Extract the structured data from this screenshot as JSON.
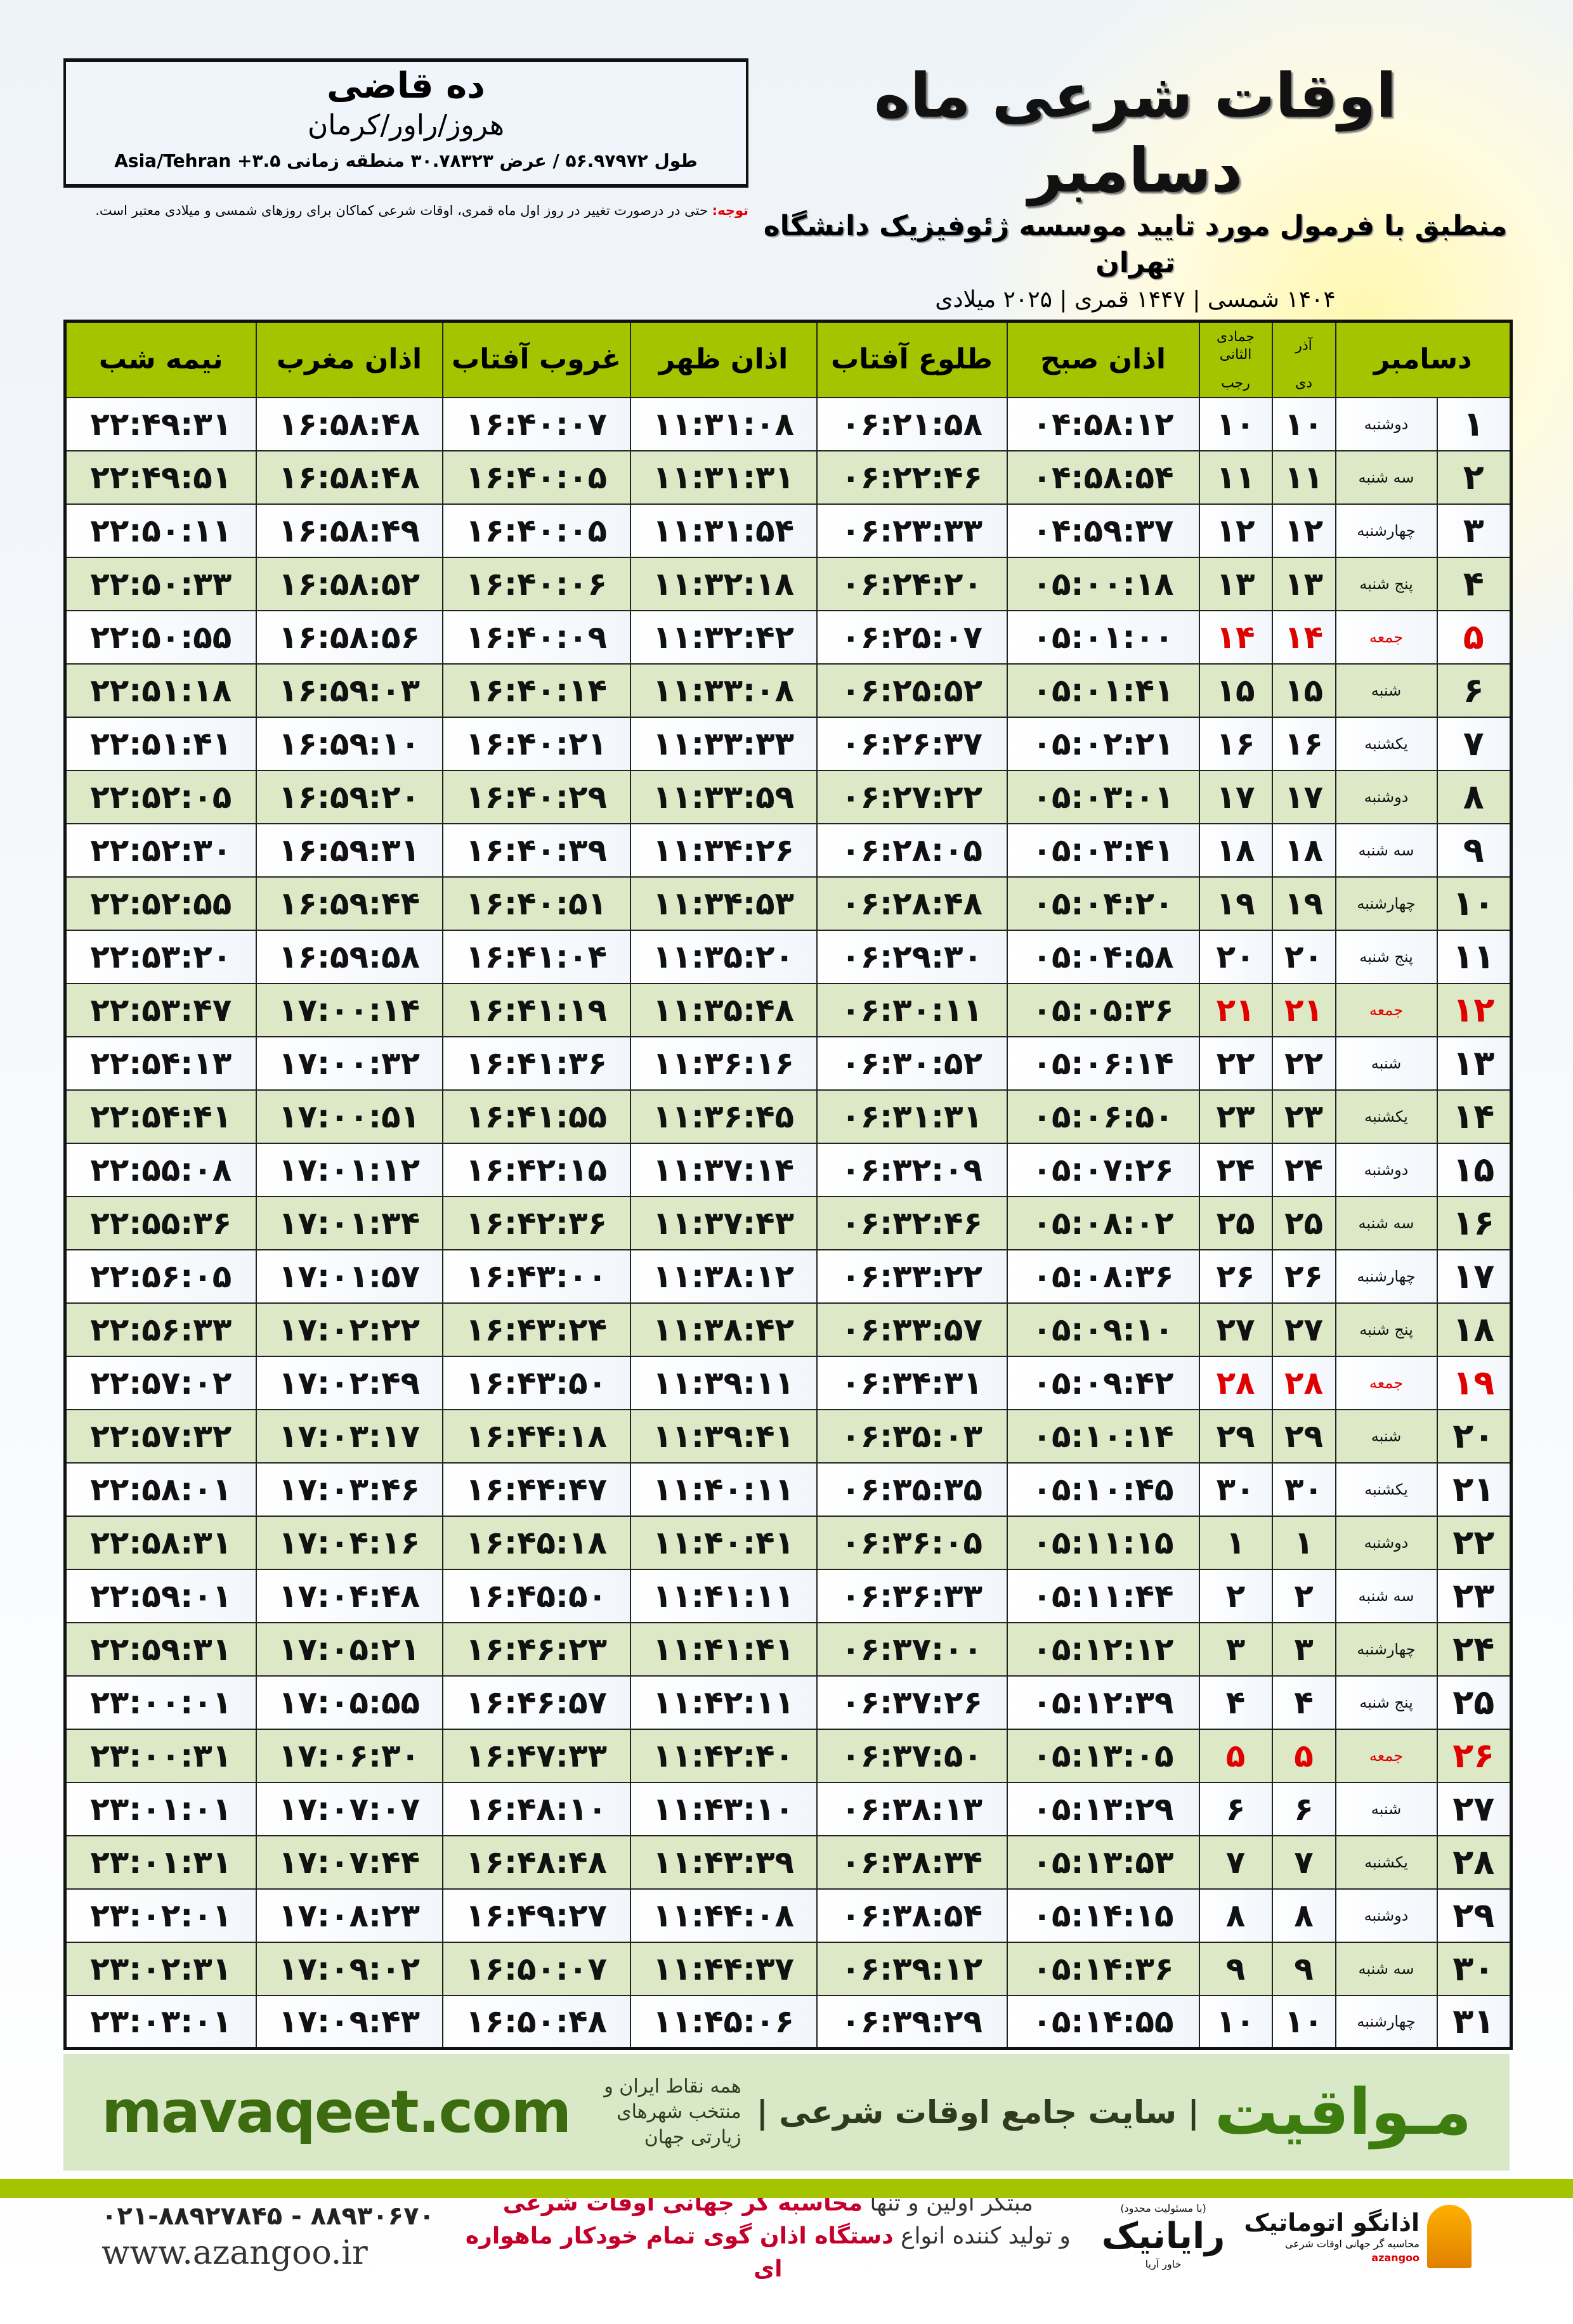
{
  "header": {
    "title": "اوقات شرعی ماه دسامبر",
    "subtitle": "منطبق با فرمول مورد تایید موسسه ژئوفیزیک دانشگاه تهران",
    "dates": "۱۴۰۴ شمسی | ۱۴۴۷ قمری | ۲۰۲۵ میلادی",
    "note_label": "توجه:",
    "note_text": " حتی در درصورت تغییر در روز اول ماه قمری، اوقات شرعی کماکان برای روزهای شمسی و میلادی معتبر است."
  },
  "location": {
    "city": "ده قاضی",
    "region": "هروز/راور/کرمان",
    "coords": "طول ۵۶.۹۷۹۷۲ / عرض ۳۰.۷۸۳۲۳ منطقه زمانی ۳.۵+ Asia/Tehran"
  },
  "table": {
    "columns": {
      "month": "دسامبر",
      "persian_month": "آذر",
      "hijri_month": "جمادی الثانی",
      "dey": "دی",
      "rajab": "رجب",
      "fajr": "اذان صبح",
      "sunrise": "طلوع آفتاب",
      "dhuhr": "اذان ظهر",
      "sunset": "غروب آفتاب",
      "maghrib": "اذان مغرب",
      "midnight": "نیمه شب"
    },
    "holiday_color": "#e00000",
    "header_color": "#a5c400",
    "rows": [
      {
        "day": "۱",
        "weekday": "دوشنبه",
        "dey": "۱۰",
        "rajab": "۱۰",
        "fajr": "۰۴:۵۸:۱۲",
        "sunrise": "۰۶:۲۱:۵۸",
        "dhuhr": "۱۱:۳۱:۰۸",
        "sunset": "۱۶:۴۰:۰۷",
        "maghrib": "۱۶:۵۸:۴۸",
        "midnight": "۲۲:۴۹:۳۱"
      },
      {
        "day": "۲",
        "weekday": "سه شنبه",
        "dey": "۱۱",
        "rajab": "۱۱",
        "fajr": "۰۴:۵۸:۵۴",
        "sunrise": "۰۶:۲۲:۴۶",
        "dhuhr": "۱۱:۳۱:۳۱",
        "sunset": "۱۶:۴۰:۰۵",
        "maghrib": "۱۶:۵۸:۴۸",
        "midnight": "۲۲:۴۹:۵۱"
      },
      {
        "day": "۳",
        "weekday": "چهارشنبه",
        "dey": "۱۲",
        "rajab": "۱۲",
        "fajr": "۰۴:۵۹:۳۷",
        "sunrise": "۰۶:۲۳:۳۳",
        "dhuhr": "۱۱:۳۱:۵۴",
        "sunset": "۱۶:۴۰:۰۵",
        "maghrib": "۱۶:۵۸:۴۹",
        "midnight": "۲۲:۵۰:۱۱"
      },
      {
        "day": "۴",
        "weekday": "پنج شنبه",
        "dey": "۱۳",
        "rajab": "۱۳",
        "fajr": "۰۵:۰۰:۱۸",
        "sunrise": "۰۶:۲۴:۲۰",
        "dhuhr": "۱۱:۳۲:۱۸",
        "sunset": "۱۶:۴۰:۰۶",
        "maghrib": "۱۶:۵۸:۵۲",
        "midnight": "۲۲:۵۰:۳۳"
      },
      {
        "day": "۵",
        "weekday": "جمعه",
        "holiday": true,
        "dey": "۱۴",
        "rajab": "۱۴",
        "fajr": "۰۵:۰۱:۰۰",
        "sunrise": "۰۶:۲۵:۰۷",
        "dhuhr": "۱۱:۳۲:۴۲",
        "sunset": "۱۶:۴۰:۰۹",
        "maghrib": "۱۶:۵۸:۵۶",
        "midnight": "۲۲:۵۰:۵۵"
      },
      {
        "day": "۶",
        "weekday": "شنبه",
        "dey": "۱۵",
        "rajab": "۱۵",
        "fajr": "۰۵:۰۱:۴۱",
        "sunrise": "۰۶:۲۵:۵۲",
        "dhuhr": "۱۱:۳۳:۰۸",
        "sunset": "۱۶:۴۰:۱۴",
        "maghrib": "۱۶:۵۹:۰۳",
        "midnight": "۲۲:۵۱:۱۸"
      },
      {
        "day": "۷",
        "weekday": "یکشنبه",
        "dey": "۱۶",
        "rajab": "۱۶",
        "fajr": "۰۵:۰۲:۲۱",
        "sunrise": "۰۶:۲۶:۳۷",
        "dhuhr": "۱۱:۳۳:۳۳",
        "sunset": "۱۶:۴۰:۲۱",
        "maghrib": "۱۶:۵۹:۱۰",
        "midnight": "۲۲:۵۱:۴۱"
      },
      {
        "day": "۸",
        "weekday": "دوشنبه",
        "dey": "۱۷",
        "rajab": "۱۷",
        "fajr": "۰۵:۰۳:۰۱",
        "sunrise": "۰۶:۲۷:۲۲",
        "dhuhr": "۱۱:۳۳:۵۹",
        "sunset": "۱۶:۴۰:۲۹",
        "maghrib": "۱۶:۵۹:۲۰",
        "midnight": "۲۲:۵۲:۰۵"
      },
      {
        "day": "۹",
        "weekday": "سه شنبه",
        "dey": "۱۸",
        "rajab": "۱۸",
        "fajr": "۰۵:۰۳:۴۱",
        "sunrise": "۰۶:۲۸:۰۵",
        "dhuhr": "۱۱:۳۴:۲۶",
        "sunset": "۱۶:۴۰:۳۹",
        "maghrib": "۱۶:۵۹:۳۱",
        "midnight": "۲۲:۵۲:۳۰"
      },
      {
        "day": "۱۰",
        "weekday": "چهارشنبه",
        "dey": "۱۹",
        "rajab": "۱۹",
        "fajr": "۰۵:۰۴:۲۰",
        "sunrise": "۰۶:۲۸:۴۸",
        "dhuhr": "۱۱:۳۴:۵۳",
        "sunset": "۱۶:۴۰:۵۱",
        "maghrib": "۱۶:۵۹:۴۴",
        "midnight": "۲۲:۵۲:۵۵"
      },
      {
        "day": "۱۱",
        "weekday": "پنج شنبه",
        "dey": "۲۰",
        "rajab": "۲۰",
        "fajr": "۰۵:۰۴:۵۸",
        "sunrise": "۰۶:۲۹:۳۰",
        "dhuhr": "۱۱:۳۵:۲۰",
        "sunset": "۱۶:۴۱:۰۴",
        "maghrib": "۱۶:۵۹:۵۸",
        "midnight": "۲۲:۵۳:۲۰"
      },
      {
        "day": "۱۲",
        "weekday": "جمعه",
        "holiday": true,
        "dey": "۲۱",
        "rajab": "۲۱",
        "fajr": "۰۵:۰۵:۳۶",
        "sunrise": "۰۶:۳۰:۱۱",
        "dhuhr": "۱۱:۳۵:۴۸",
        "sunset": "۱۶:۴۱:۱۹",
        "maghrib": "۱۷:۰۰:۱۴",
        "midnight": "۲۲:۵۳:۴۷"
      },
      {
        "day": "۱۳",
        "weekday": "شنبه",
        "dey": "۲۲",
        "rajab": "۲۲",
        "fajr": "۰۵:۰۶:۱۴",
        "sunrise": "۰۶:۳۰:۵۲",
        "dhuhr": "۱۱:۳۶:۱۶",
        "sunset": "۱۶:۴۱:۳۶",
        "maghrib": "۱۷:۰۰:۳۲",
        "midnight": "۲۲:۵۴:۱۳"
      },
      {
        "day": "۱۴",
        "weekday": "یکشنبه",
        "dey": "۲۳",
        "rajab": "۲۳",
        "fajr": "۰۵:۰۶:۵۰",
        "sunrise": "۰۶:۳۱:۳۱",
        "dhuhr": "۱۱:۳۶:۴۵",
        "sunset": "۱۶:۴۱:۵۵",
        "maghrib": "۱۷:۰۰:۵۱",
        "midnight": "۲۲:۵۴:۴۱"
      },
      {
        "day": "۱۵",
        "weekday": "دوشنبه",
        "dey": "۲۴",
        "rajab": "۲۴",
        "fajr": "۰۵:۰۷:۲۶",
        "sunrise": "۰۶:۳۲:۰۹",
        "dhuhr": "۱۱:۳۷:۱۴",
        "sunset": "۱۶:۴۲:۱۵",
        "maghrib": "۱۷:۰۱:۱۲",
        "midnight": "۲۲:۵۵:۰۸"
      },
      {
        "day": "۱۶",
        "weekday": "سه شنبه",
        "dey": "۲۵",
        "rajab": "۲۵",
        "fajr": "۰۵:۰۸:۰۲",
        "sunrise": "۰۶:۳۲:۴۶",
        "dhuhr": "۱۱:۳۷:۴۳",
        "sunset": "۱۶:۴۲:۳۶",
        "maghrib": "۱۷:۰۱:۳۴",
        "midnight": "۲۲:۵۵:۳۶"
      },
      {
        "day": "۱۷",
        "weekday": "چهارشنبه",
        "dey": "۲۶",
        "rajab": "۲۶",
        "fajr": "۰۵:۰۸:۳۶",
        "sunrise": "۰۶:۳۳:۲۲",
        "dhuhr": "۱۱:۳۸:۱۲",
        "sunset": "۱۶:۴۳:۰۰",
        "maghrib": "۱۷:۰۱:۵۷",
        "midnight": "۲۲:۵۶:۰۵"
      },
      {
        "day": "۱۸",
        "weekday": "پنج شنبه",
        "dey": "۲۷",
        "rajab": "۲۷",
        "fajr": "۰۵:۰۹:۱۰",
        "sunrise": "۰۶:۳۳:۵۷",
        "dhuhr": "۱۱:۳۸:۴۲",
        "sunset": "۱۶:۴۳:۲۴",
        "maghrib": "۱۷:۰۲:۲۲",
        "midnight": "۲۲:۵۶:۳۳"
      },
      {
        "day": "۱۹",
        "weekday": "جمعه",
        "holiday": true,
        "dey": "۲۸",
        "rajab": "۲۸",
        "fajr": "۰۵:۰۹:۴۲",
        "sunrise": "۰۶:۳۴:۳۱",
        "dhuhr": "۱۱:۳۹:۱۱",
        "sunset": "۱۶:۴۳:۵۰",
        "maghrib": "۱۷:۰۲:۴۹",
        "midnight": "۲۲:۵۷:۰۲"
      },
      {
        "day": "۲۰",
        "weekday": "شنبه",
        "dey": "۲۹",
        "rajab": "۲۹",
        "fajr": "۰۵:۱۰:۱۴",
        "sunrise": "۰۶:۳۵:۰۳",
        "dhuhr": "۱۱:۳۹:۴۱",
        "sunset": "۱۶:۴۴:۱۸",
        "maghrib": "۱۷:۰۳:۱۷",
        "midnight": "۲۲:۵۷:۳۲"
      },
      {
        "day": "۲۱",
        "weekday": "یکشنبه",
        "dey": "۳۰",
        "rajab": "۳۰",
        "fajr": "۰۵:۱۰:۴۵",
        "sunrise": "۰۶:۳۵:۳۵",
        "dhuhr": "۱۱:۴۰:۱۱",
        "sunset": "۱۶:۴۴:۴۷",
        "maghrib": "۱۷:۰۳:۴۶",
        "midnight": "۲۲:۵۸:۰۱"
      },
      {
        "day": "۲۲",
        "weekday": "دوشنبه",
        "dey": "۱",
        "rajab": "۱",
        "fajr": "۰۵:۱۱:۱۵",
        "sunrise": "۰۶:۳۶:۰۵",
        "dhuhr": "۱۱:۴۰:۴۱",
        "sunset": "۱۶:۴۵:۱۸",
        "maghrib": "۱۷:۰۴:۱۶",
        "midnight": "۲۲:۵۸:۳۱"
      },
      {
        "day": "۲۳",
        "weekday": "سه شنبه",
        "dey": "۲",
        "rajab": "۲",
        "fajr": "۰۵:۱۱:۴۴",
        "sunrise": "۰۶:۳۶:۳۳",
        "dhuhr": "۱۱:۴۱:۱۱",
        "sunset": "۱۶:۴۵:۵۰",
        "maghrib": "۱۷:۰۴:۴۸",
        "midnight": "۲۲:۵۹:۰۱"
      },
      {
        "day": "۲۴",
        "weekday": "چهارشنبه",
        "dey": "۳",
        "rajab": "۳",
        "fajr": "۰۵:۱۲:۱۲",
        "sunrise": "۰۶:۳۷:۰۰",
        "dhuhr": "۱۱:۴۱:۴۱",
        "sunset": "۱۶:۴۶:۲۳",
        "maghrib": "۱۷:۰۵:۲۱",
        "midnight": "۲۲:۵۹:۳۱"
      },
      {
        "day": "۲۵",
        "weekday": "پنج شنبه",
        "dey": "۴",
        "rajab": "۴",
        "fajr": "۰۵:۱۲:۳۹",
        "sunrise": "۰۶:۳۷:۲۶",
        "dhuhr": "۱۱:۴۲:۱۱",
        "sunset": "۱۶:۴۶:۵۷",
        "maghrib": "۱۷:۰۵:۵۵",
        "midnight": "۲۳:۰۰:۰۱"
      },
      {
        "day": "۲۶",
        "weekday": "جمعه",
        "holiday": true,
        "dey": "۵",
        "rajab": "۵",
        "fajr": "۰۵:۱۳:۰۵",
        "sunrise": "۰۶:۳۷:۵۰",
        "dhuhr": "۱۱:۴۲:۴۰",
        "sunset": "۱۶:۴۷:۳۳",
        "maghrib": "۱۷:۰۶:۳۰",
        "midnight": "۲۳:۰۰:۳۱"
      },
      {
        "day": "۲۷",
        "weekday": "شنبه",
        "dey": "۶",
        "rajab": "۶",
        "fajr": "۰۵:۱۳:۲۹",
        "sunrise": "۰۶:۳۸:۱۳",
        "dhuhr": "۱۱:۴۳:۱۰",
        "sunset": "۱۶:۴۸:۱۰",
        "maghrib": "۱۷:۰۷:۰۷",
        "midnight": "۲۳:۰۱:۰۱"
      },
      {
        "day": "۲۸",
        "weekday": "یکشنبه",
        "dey": "۷",
        "rajab": "۷",
        "fajr": "۰۵:۱۳:۵۳",
        "sunrise": "۰۶:۳۸:۳۴",
        "dhuhr": "۱۱:۴۳:۳۹",
        "sunset": "۱۶:۴۸:۴۸",
        "maghrib": "۱۷:۰۷:۴۴",
        "midnight": "۲۳:۰۱:۳۱"
      },
      {
        "day": "۲۹",
        "weekday": "دوشنبه",
        "dey": "۸",
        "rajab": "۸",
        "fajr": "۰۵:۱۴:۱۵",
        "sunrise": "۰۶:۳۸:۵۴",
        "dhuhr": "۱۱:۴۴:۰۸",
        "sunset": "۱۶:۴۹:۲۷",
        "maghrib": "۱۷:۰۸:۲۳",
        "midnight": "۲۳:۰۲:۰۱"
      },
      {
        "day": "۳۰",
        "weekday": "سه شنبه",
        "dey": "۹",
        "rajab": "۹",
        "fajr": "۰۵:۱۴:۳۶",
        "sunrise": "۰۶:۳۹:۱۲",
        "dhuhr": "۱۱:۴۴:۳۷",
        "sunset": "۱۶:۵۰:۰۷",
        "maghrib": "۱۷:۰۹:۰۲",
        "midnight": "۲۳:۰۲:۳۱"
      },
      {
        "day": "۳۱",
        "weekday": "چهارشنبه",
        "dey": "۱۰",
        "rajab": "۱۰",
        "fajr": "۰۵:۱۴:۵۵",
        "sunrise": "۰۶:۳۹:۲۹",
        "dhuhr": "۱۱:۴۵:۰۶",
        "sunset": "۱۶:۵۰:۴۸",
        "maghrib": "۱۷:۰۹:۴۳",
        "midnight": "۲۳:۰۳:۰۱"
      }
    ]
  },
  "footer": {
    "site": "mavaqeet.com",
    "brand": "مـواقیت",
    "tagline": "| سایت جامع اوقات شرعی |",
    "tagline_sub": "همه نقاط ایران و منتخب شهرهای زیارتی جهان",
    "phone": "۰۲۱-۸۸۹۲۷۸۴۵ - ۸۸۹۳۰۶۷۰",
    "web": "www.azangoo.ir",
    "promo_1a": "مبتکر اولین و تنها ",
    "promo_1b": "محاسبه گر جهانی اوقات شرعی",
    "promo_2a": "و تولید کننده انواع ",
    "promo_2b": "دستگاه اذان گوی تمام خودکار ماهواره ای",
    "raya_small": "(با مسئولیت محدود)",
    "raya_name": "رایانیک",
    "raya_sub": "خاور آریا",
    "azangoo_name": "اذانگو اتوماتیک",
    "azangoo_slogan": "محاسبه گر جهانی اوقات شرعی",
    "azangoo_en": "azangoo",
    "accent_color": "#3d6b10",
    "bar_color": "#a5c400"
  }
}
